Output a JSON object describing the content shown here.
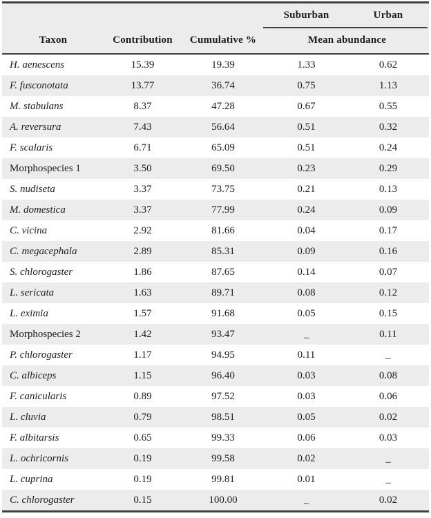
{
  "table": {
    "header": {
      "suburban": "Suburban",
      "urban": "Urban",
      "taxon": "Taxon",
      "contribution": "Contribution",
      "cumulative": "Cumulative %",
      "mean_abundance": "Mean abundance"
    },
    "empty_cell_glyph": "_",
    "colors": {
      "stripe_bg": "#ececec",
      "header_bg": "#ececec",
      "rule": "#404040",
      "text": "#1c1c1c"
    },
    "rows": [
      {
        "taxon": "H. aenescens",
        "italic": true,
        "contribution": "15.39",
        "cumulative": "19.39",
        "suburban": "1.33",
        "urban": "0.62"
      },
      {
        "taxon": "F. fusconotata",
        "italic": true,
        "contribution": "13.77",
        "cumulative": "36.74",
        "suburban": "0.75",
        "urban": "1.13"
      },
      {
        "taxon": "M. stabulans",
        "italic": true,
        "contribution": "8.37",
        "cumulative": "47.28",
        "suburban": "0.67",
        "urban": "0.55"
      },
      {
        "taxon": "A. reversura",
        "italic": true,
        "contribution": "7.43",
        "cumulative": "56.64",
        "suburban": "0.51",
        "urban": "0.32"
      },
      {
        "taxon": "F. scalaris",
        "italic": true,
        "contribution": "6.71",
        "cumulative": "65.09",
        "suburban": "0.51",
        "urban": "0.24"
      },
      {
        "taxon": "Morphospecies 1",
        "italic": false,
        "contribution": "3.50",
        "cumulative": "69.50",
        "suburban": "0.23",
        "urban": "0.29"
      },
      {
        "taxon": "S. nudiseta",
        "italic": true,
        "contribution": "3.37",
        "cumulative": "73.75",
        "suburban": "0.21",
        "urban": "0.13"
      },
      {
        "taxon": "M. domestica",
        "italic": true,
        "contribution": "3.37",
        "cumulative": "77.99",
        "suburban": "0.24",
        "urban": "0.09"
      },
      {
        "taxon": "C. vicina",
        "italic": true,
        "contribution": "2.92",
        "cumulative": "81.66",
        "suburban": "0.04",
        "urban": "0.17"
      },
      {
        "taxon": "C. megacephala",
        "italic": true,
        "contribution": "2.89",
        "cumulative": "85.31",
        "suburban": "0.09",
        "urban": "0.16"
      },
      {
        "taxon": "S. chlorogaster",
        "italic": true,
        "contribution": "1.86",
        "cumulative": "87.65",
        "suburban": "0.14",
        "urban": "0.07"
      },
      {
        "taxon": "L. sericata",
        "italic": true,
        "contribution": "1.63",
        "cumulative": "89.71",
        "suburban": "0.08",
        "urban": "0.12"
      },
      {
        "taxon": "L. eximia",
        "italic": true,
        "contribution": "1.57",
        "cumulative": "91.68",
        "suburban": "0.05",
        "urban": "0.15"
      },
      {
        "taxon": "Morphospecies 2",
        "italic": false,
        "contribution": "1.42",
        "cumulative": "93.47",
        "suburban": "_",
        "urban": "0.11"
      },
      {
        "taxon": "P. chlorogaster",
        "italic": true,
        "contribution": "1.17",
        "cumulative": "94.95",
        "suburban": "0.11",
        "urban": "_"
      },
      {
        "taxon": "C. albiceps",
        "italic": true,
        "contribution": "1.15",
        "cumulative": "96.40",
        "suburban": "0.03",
        "urban": "0.08"
      },
      {
        "taxon": "F. canicularis",
        "italic": true,
        "contribution": "0.89",
        "cumulative": "97.52",
        "suburban": "0.03",
        "urban": "0.06"
      },
      {
        "taxon": "L. cluvia",
        "italic": true,
        "contribution": "0.79",
        "cumulative": "98.51",
        "suburban": "0.05",
        "urban": "0.02"
      },
      {
        "taxon": "F. albitarsis",
        "italic": true,
        "contribution": "0.65",
        "cumulative": "99.33",
        "suburban": "0.06",
        "urban": "0.03"
      },
      {
        "taxon": "L. ochricornis",
        "italic": true,
        "contribution": "0.19",
        "cumulative": "99.58",
        "suburban": "0.02",
        "urban": "_"
      },
      {
        "taxon": "L. cuprina",
        "italic": true,
        "contribution": "0.19",
        "cumulative": "99.81",
        "suburban": "0.01",
        "urban": "_"
      },
      {
        "taxon": "C. chlorogaster",
        "italic": true,
        "contribution": "0.15",
        "cumulative": "100.00",
        "suburban": "_",
        "urban": "0.02"
      }
    ]
  }
}
